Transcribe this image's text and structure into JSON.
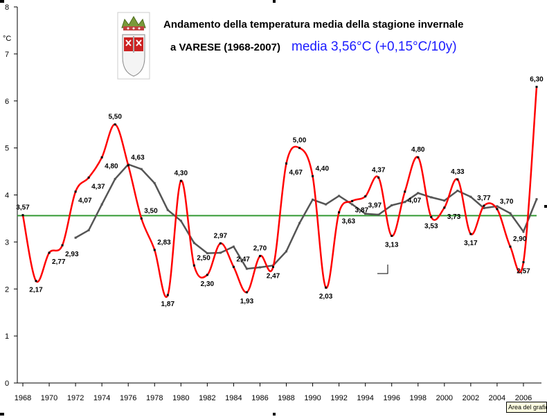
{
  "chart_data": {
    "type": "line",
    "title_line1": "Andamento della temperatura media della stagione invernale",
    "title_line2": "a VARESE (1968-2007)",
    "title_line2_highlight": "media 3,56°C (+0,15°C/10y)",
    "ylabel": "°C",
    "ylim": [
      0,
      8
    ],
    "yticks": [
      0,
      1,
      2,
      3,
      4,
      5,
      6,
      7,
      8
    ],
    "xlim": [
      1968,
      2007
    ],
    "xticks": [
      1968,
      1970,
      1972,
      1974,
      1976,
      1978,
      1980,
      1982,
      1984,
      1986,
      1988,
      1990,
      1992,
      1994,
      1996,
      1998,
      2000,
      2002,
      2004,
      2006
    ],
    "x": [
      1968,
      1969,
      1970,
      1971,
      1972,
      1973,
      1974,
      1975,
      1976,
      1977,
      1978,
      1979,
      1980,
      1981,
      1982,
      1983,
      1984,
      1985,
      1986,
      1987,
      1988,
      1989,
      1990,
      1991,
      1992,
      1993,
      1994,
      1995,
      1996,
      1997,
      1998,
      1999,
      2000,
      2001,
      2002,
      2003,
      2004,
      2005,
      2006,
      2007
    ],
    "series": [
      {
        "values": [
          3.57,
          2.17,
          2.77,
          2.93,
          4.07,
          4.37,
          4.8,
          5.5,
          4.63,
          3.5,
          2.83,
          1.87,
          4.3,
          2.5,
          2.3,
          2.97,
          2.47,
          1.93,
          2.7,
          2.47,
          4.67,
          5.0,
          4.4,
          2.03,
          3.63,
          3.87,
          3.97,
          4.37,
          3.13,
          4.07,
          4.8,
          3.53,
          3.73,
          4.33,
          3.17,
          3.77,
          3.7,
          2.9,
          2.57,
          6.3
        ],
        "color": "#ff0000"
      },
      {
        "x": [
          1972,
          1973,
          1974,
          1975,
          1976,
          1977,
          1978,
          1979,
          1980,
          1981,
          1982,
          1983,
          1984,
          1985,
          1986,
          1987,
          1988,
          1989,
          1990,
          1991,
          1992,
          1993,
          1994,
          1995,
          1996,
          1997,
          1998,
          1999,
          2000,
          2001,
          2002,
          2003,
          2004,
          2005,
          2006,
          2007
        ],
        "values": [
          3.09,
          3.25,
          3.8,
          4.34,
          4.65,
          4.55,
          4.25,
          3.68,
          3.45,
          2.98,
          2.76,
          2.77,
          2.9,
          2.43,
          2.46,
          2.5,
          2.8,
          3.4,
          3.9,
          3.8,
          3.98,
          3.8,
          3.6,
          3.58,
          3.78,
          3.85,
          4.04,
          3.95,
          3.88,
          4.09,
          3.96,
          3.72,
          3.76,
          3.61,
          3.22,
          3.91
        ],
        "color": "#555555"
      }
    ],
    "mean_line": {
      "value": 3.56,
      "color": "#339933"
    },
    "data_labels": [
      "3,57",
      "2,17",
      "2,77",
      "2,93",
      "4,07",
      "4,37",
      "4,80",
      "5,50",
      "4,63",
      "3,50",
      "2,83",
      "1,87",
      "4,30",
      "2,50",
      "2,30",
      "2,97",
      "2,47",
      "1,93",
      "2,70",
      "2,47",
      "4,67",
      "5,00",
      "4,40",
      "2,03",
      "3,63",
      "3,87",
      "3,97",
      "4,37",
      "3,13",
      "4,07",
      "4,80",
      "3,53",
      "3,73",
      "4,33",
      "3,17",
      "3,77",
      "3,70",
      "2,90",
      "2,57",
      "6,30"
    ],
    "grid": false,
    "legend": "none"
  },
  "tooltip": "Area del grafico",
  "emblem_icon": "coat-of-arms-icon"
}
